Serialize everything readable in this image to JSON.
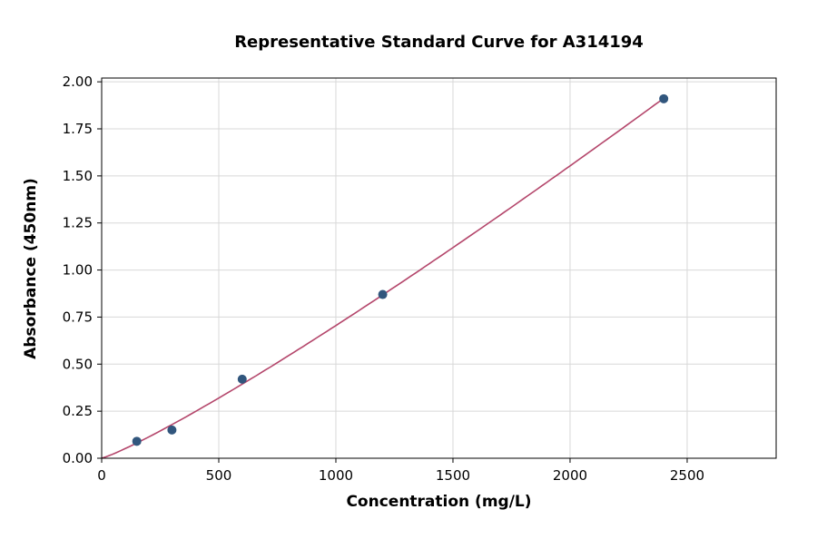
{
  "chart_data": {
    "type": "scatter",
    "title": "Representative Standard Curve for A314194",
    "xlabel": "Concentration (mg/L)",
    "ylabel": "Absorbance (450nm)",
    "xlim": [
      0,
      2880
    ],
    "ylim": [
      0,
      2.02
    ],
    "x_ticks": [
      0,
      500,
      1000,
      1500,
      2000,
      2500
    ],
    "y_ticks": [
      "0.00",
      "0.25",
      "0.50",
      "0.75",
      "1.00",
      "1.25",
      "1.50",
      "1.75",
      "2.00"
    ],
    "grid": true,
    "legend_position": "none",
    "points": [
      {
        "x": 150,
        "y": 0.09
      },
      {
        "x": 300,
        "y": 0.15
      },
      {
        "x": 600,
        "y": 0.42
      },
      {
        "x": 1200,
        "y": 0.87
      },
      {
        "x": 2400,
        "y": 1.91
      }
    ],
    "fit_curve": {
      "type": "power",
      "a": 0.000268,
      "b": 1.14,
      "x_start": 0,
      "x_end": 2400
    },
    "colors": {
      "point": "#31567d",
      "curve": "#b4466b",
      "grid": "#d8d8d8",
      "axis": "#000000",
      "background": "#ffffff"
    }
  }
}
